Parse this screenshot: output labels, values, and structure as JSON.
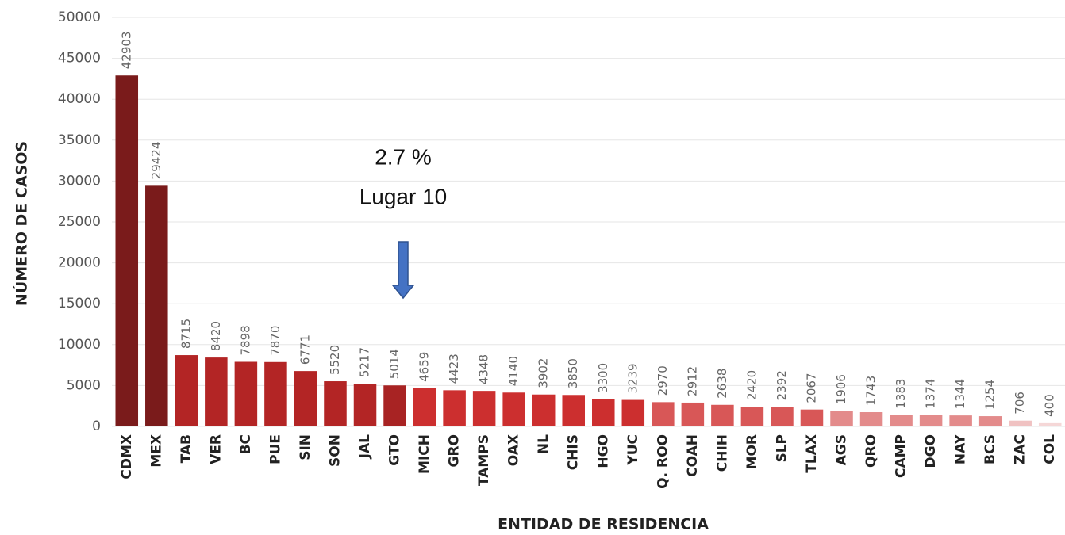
{
  "chart_data": {
    "type": "bar",
    "xlabel": "ENTIDAD DE RESIDENCIA",
    "ylabel": "NÚMERO DE CASOS",
    "annotations": [
      "2.7 %",
      "Lugar 10"
    ],
    "categories": [
      "CDMX",
      "MEX",
      "TAB",
      "VER",
      "BC",
      "PUE",
      "SIN",
      "SON",
      "JAL",
      "GTO",
      "MICH",
      "GRO",
      "TAMPS",
      "OAX",
      "NL",
      "CHIS",
      "HGO",
      "YUC",
      "Q. ROO",
      "COAH",
      "CHIH",
      "MOR",
      "SLP",
      "TLAX",
      "AGS",
      "QRO",
      "CAMP",
      "DGO",
      "NAY",
      "BCS",
      "ZAC",
      "COL"
    ],
    "values": [
      42903,
      29424,
      8715,
      8420,
      7898,
      7870,
      6771,
      5520,
      5217,
      5014,
      4659,
      4423,
      4348,
      4140,
      3902,
      3850,
      3300,
      3239,
      2970,
      2912,
      2638,
      2420,
      2392,
      2067,
      1906,
      1743,
      1383,
      1374,
      1344,
      1254,
      706,
      400
    ],
    "colors": [
      "#7a1b1b",
      "#7a1b1b",
      "#b32525",
      "#b32525",
      "#b32525",
      "#b32525",
      "#b32525",
      "#b32525",
      "#b32525",
      "#a82323",
      "#cc2f2f",
      "#cc2f2f",
      "#cc2f2f",
      "#cc2f2f",
      "#cc2f2f",
      "#cc2f2f",
      "#cc2f2f",
      "#cc2f2f",
      "#d85757",
      "#d85757",
      "#d85757",
      "#d85757",
      "#d85757",
      "#d85757",
      "#e38b8b",
      "#e38b8b",
      "#e38b8b",
      "#e38b8b",
      "#e38b8b",
      "#e38b8b",
      "#f0c2c2",
      "#f5d7d7"
    ],
    "ylim": [
      0,
      50000
    ],
    "yticks": [
      0,
      5000,
      10000,
      15000,
      20000,
      25000,
      30000,
      35000,
      40000,
      45000,
      50000
    ],
    "grid": true
  }
}
